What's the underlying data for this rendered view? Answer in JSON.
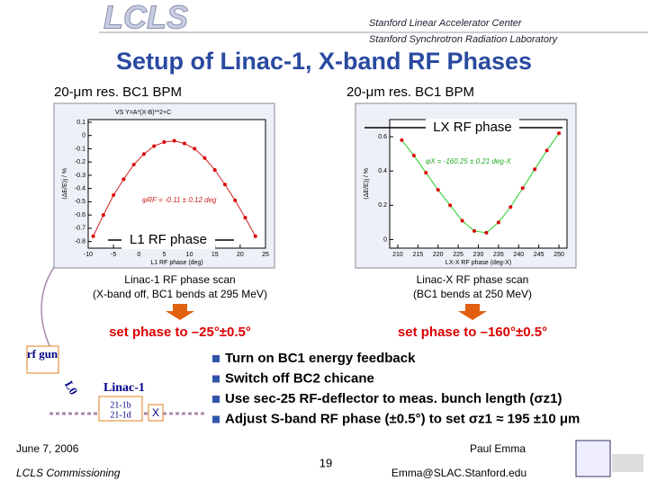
{
  "header": {
    "logo": "LCLS",
    "org1": "Stanford Linear Accelerator Center",
    "org2": "Stanford Synchrotron Radiation Laboratory"
  },
  "title": "Setup of Linac-1, X-band RF Phases",
  "plots": [
    {
      "bpm_label": "20-μm res. BC1 BPM",
      "phase_label": "L1 RF phase",
      "plot_title": "VS  Y=A*(X-B)**2+C",
      "fit": "φRF = -0.11 ± 0.12 deg",
      "xlabel": "L1 RF phase (deg)",
      "ylabel": "⟨ΔE/E⟩j / %",
      "xlim": [
        -10,
        25
      ],
      "ylim": [
        -0.85,
        0.12
      ],
      "xticks": [
        -10,
        -5,
        0,
        5,
        10,
        15,
        20,
        25
      ],
      "yticks": [
        0.1,
        0,
        -0.1,
        -0.2,
        -0.3,
        -0.4,
        -0.5,
        -0.6,
        -0.7,
        -0.8
      ],
      "x": [
        -9,
        -7,
        -5,
        -3,
        -1,
        1,
        3,
        5,
        7,
        9,
        11,
        13,
        15,
        17,
        19,
        21,
        23
      ],
      "values": [
        -0.76,
        -0.6,
        -0.45,
        -0.33,
        -0.22,
        -0.14,
        -0.08,
        -0.05,
        -0.04,
        -0.06,
        -0.1,
        -0.17,
        -0.26,
        -0.37,
        -0.49,
        -0.62,
        -0.76
      ],
      "caption1": "Linac-1 RF phase scan",
      "caption2": "(X-band off, BC1 bends at 295 MeV)",
      "set_phase": "set phase to –25°±0.5°"
    },
    {
      "bpm_label": "20-μm res. BC1 BPM",
      "phase_label": "LX RF phase",
      "plot_title": "",
      "fit": "φX = -160.25 ± 0.21 deg-X",
      "xlabel": "LX-X RF phase (deg-X)",
      "ylabel": "⟨ΔE/E⟩j / %",
      "xlim": [
        208,
        252
      ],
      "ylim": [
        -0.05,
        0.7
      ],
      "xticks": [
        210,
        215,
        220,
        225,
        230,
        235,
        240,
        245,
        250
      ],
      "yticks": [
        0.6,
        0.4,
        0.2,
        0
      ],
      "x": [
        211,
        214,
        217,
        220,
        223,
        226,
        229,
        232,
        235,
        238,
        241,
        244,
        247,
        250
      ],
      "values": [
        0.58,
        0.49,
        0.39,
        0.29,
        0.2,
        0.11,
        0.05,
        0.04,
        0.1,
        0.19,
        0.3,
        0.41,
        0.52,
        0.62
      ],
      "caption1": "Linac-X RF phase scan",
      "caption2": "(BC1 bends at 250 MeV)",
      "set_phase": "set phase to –160°±0.5°"
    }
  ],
  "bullets": [
    "Turn on BC1 energy feedback",
    "Switch off BC2 chicane",
    "Use sec-25 RF-deflector to meas. bunch length (σz1)",
    "Adjust S-band RF phase (±0.5°) to set σz1 ≈ 195 ±10 μm"
  ],
  "diagram": {
    "gun": "rf gun",
    "l0": "L0",
    "linac": "Linac-1",
    "cav1": "21-1b",
    "cav2": "21-1d",
    "x": "X"
  },
  "footer": {
    "date": "June 7, 2006",
    "event": "LCLS Commissioning",
    "page": "19",
    "author": "Paul Emma",
    "email": "Emma@SLAC.Stanford.edu"
  }
}
